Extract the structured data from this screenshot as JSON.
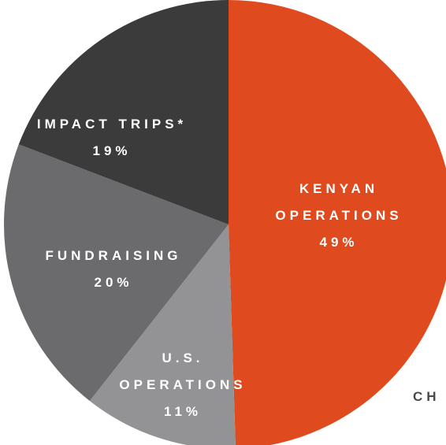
{
  "chart_data": {
    "type": "pie",
    "categories": [
      "KENYAN OPERATIONS",
      "U.S. OPERATIONS",
      "FUNDRAISING",
      "IMPACT TRIPS*"
    ],
    "values": [
      49,
      11,
      20,
      19
    ],
    "value_labels": [
      "49%",
      "11%",
      "20%",
      "19%"
    ],
    "colors": [
      "#e04a1f",
      "#939396",
      "#6b6b6e",
      "#3b3b3c"
    ],
    "annotation": "CH"
  }
}
